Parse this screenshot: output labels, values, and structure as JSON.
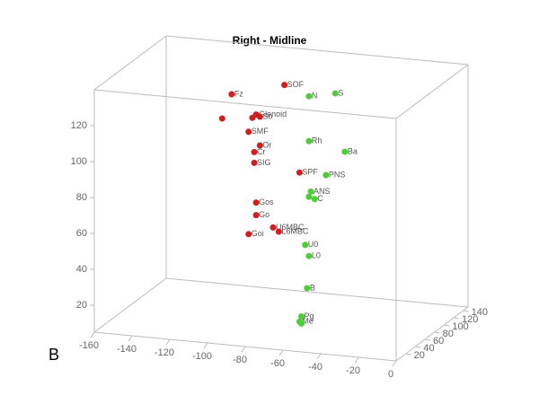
{
  "chart_data": {
    "type": "scatter3d",
    "title": "Right - Midline",
    "panel_label": "B",
    "xlim": [
      -160,
      0
    ],
    "ylim": [
      0,
      150
    ],
    "zlim": [
      5,
      140
    ],
    "xticks": [
      -160,
      -140,
      -120,
      -100,
      -80,
      -60,
      -40,
      -20,
      0
    ],
    "yticks": [
      20,
      40,
      60,
      80,
      100,
      120,
      140
    ],
    "zticks": [
      20,
      40,
      60,
      80,
      100,
      120
    ],
    "series": [
      {
        "color": "#d11f1f",
        "labels": [
          "Fz",
          "SOF",
          null,
          "Glenoid",
          null,
          "So",
          "SMF",
          "Or",
          "Cr",
          "SIG",
          "SPF",
          "Gos",
          "Go",
          "U6MBC",
          "L6MBC",
          "Goi"
        ],
        "x": [
          -105,
          -77,
          -110,
          -92,
          -94,
          -90,
          -96,
          -90,
          -93,
          -93,
          -69,
          -92,
          -92,
          -83,
          -80,
          -96
        ],
        "y": [
          70,
          70,
          70,
          70,
          70,
          70,
          70,
          70,
          70,
          70,
          70,
          70,
          70,
          70,
          70,
          70
        ],
        "z": [
          129,
          137,
          115,
          119,
          117,
          118,
          109,
          102,
          98,
          92,
          89,
          70,
          63,
          57,
          55,
          52
        ]
      },
      {
        "color": "#4ccf35",
        "labels": [
          "S",
          "N",
          "Rh",
          "Ba",
          "PNS",
          "ANS",
          null,
          "C",
          "U0",
          "L0",
          "B",
          "Pg",
          "Me",
          null
        ],
        "x": [
          -50,
          -64,
          -64,
          -45,
          -55,
          -63,
          -64,
          -61,
          -66,
          -64,
          -65,
          -68,
          -69,
          -68
        ],
        "y": [
          70,
          70,
          70,
          70,
          70,
          70,
          70,
          70,
          70,
          70,
          70,
          70,
          70,
          70
        ],
        "z": [
          135,
          132,
          107,
          103,
          89,
          79,
          76,
          75,
          49,
          43,
          25,
          9,
          6,
          5
        ]
      }
    ]
  }
}
